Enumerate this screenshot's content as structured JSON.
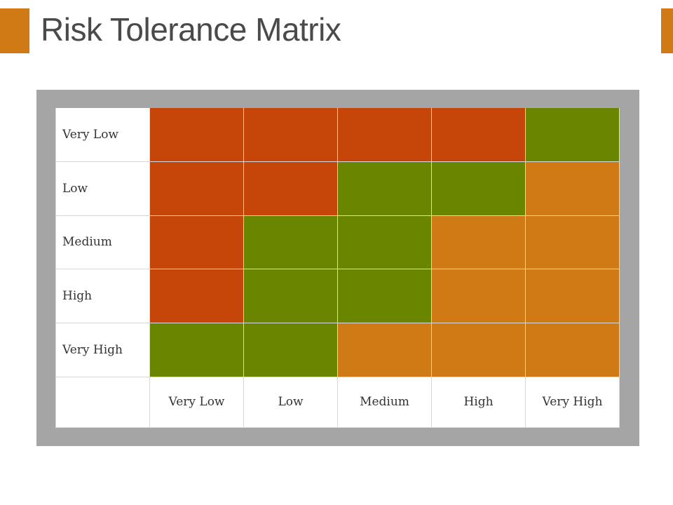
{
  "title": "Risk Tolerance Matrix",
  "colors": {
    "accent": "#d07a16",
    "frame": "#a5a5a5",
    "red": "#c64609",
    "green": "#6a8600",
    "orange": "#d07a16"
  },
  "matrix": {
    "row_labels": [
      "Very Low",
      "Low",
      "Medium",
      "High",
      "Very High"
    ],
    "col_labels": [
      "Very Low",
      "Low",
      "Medium",
      "High",
      "Very High"
    ],
    "cells": [
      [
        "red",
        "red",
        "red",
        "red",
        "green"
      ],
      [
        "red",
        "red",
        "green",
        "green",
        "orange"
      ],
      [
        "red",
        "green",
        "green",
        "orange",
        "orange"
      ],
      [
        "red",
        "green",
        "green",
        "orange",
        "orange"
      ],
      [
        "green",
        "green",
        "orange",
        "orange",
        "orange"
      ]
    ]
  }
}
